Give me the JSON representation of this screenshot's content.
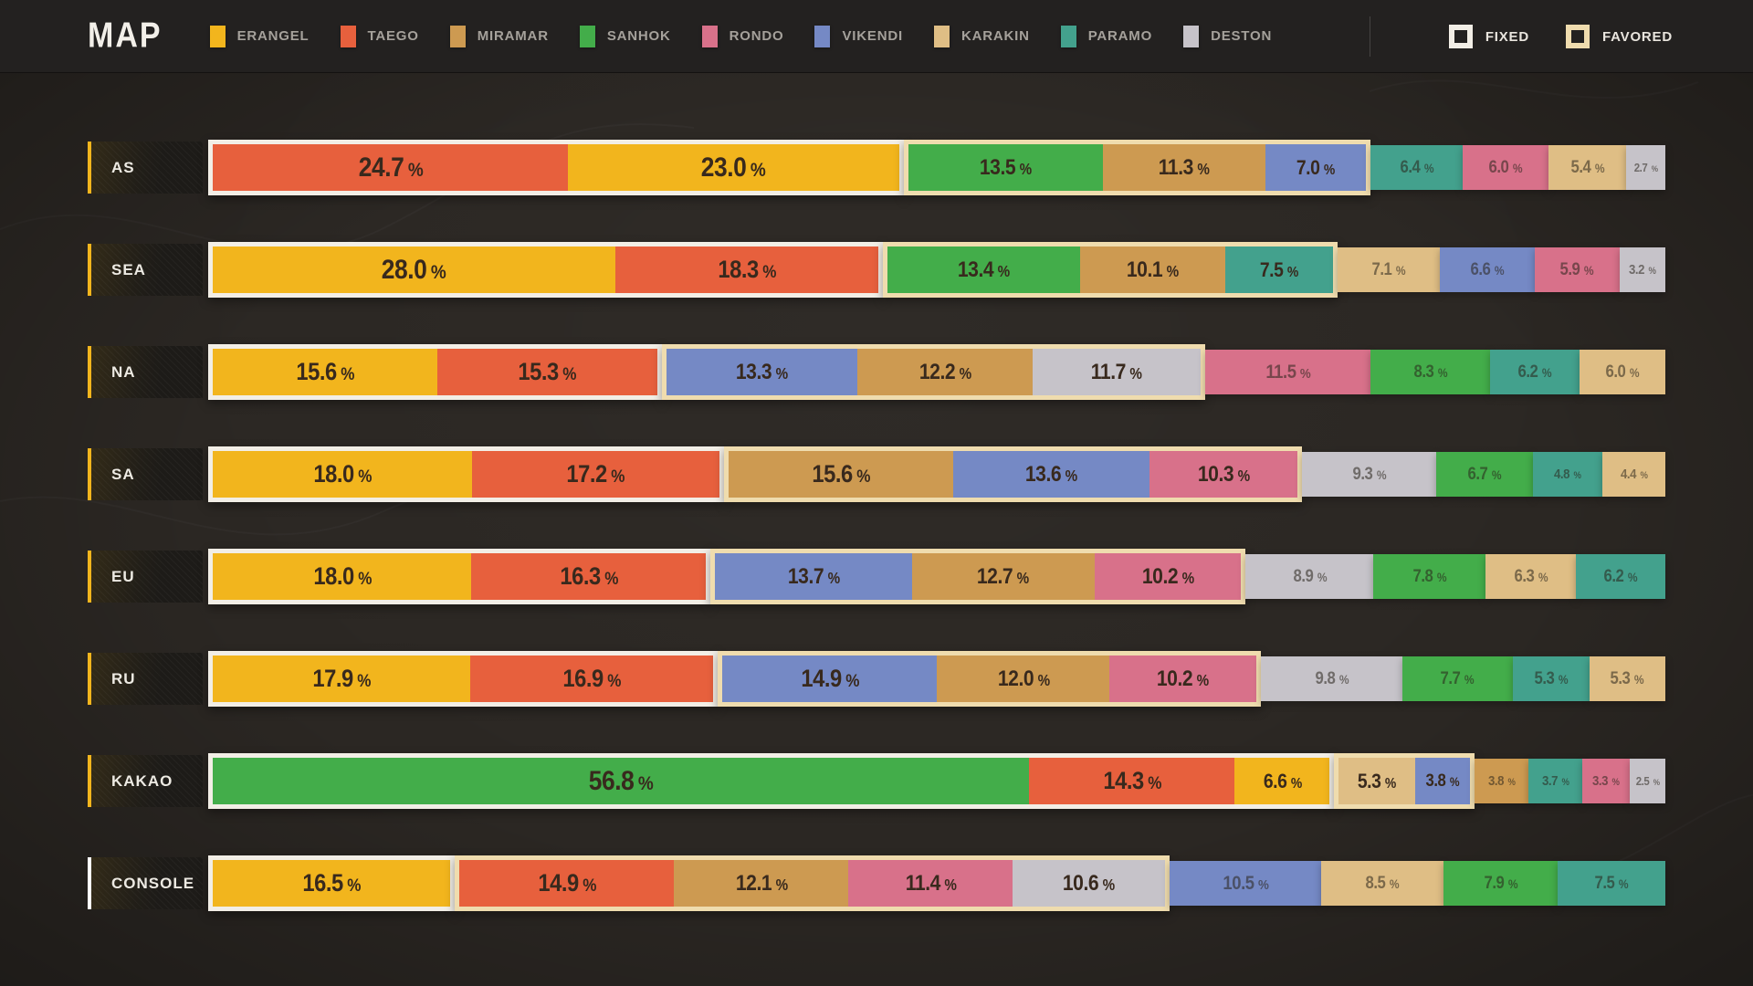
{
  "header": {
    "title": "MAP",
    "legend": [
      {
        "map": "ERANGEL",
        "color": "#F2B51D"
      },
      {
        "map": "TAEGO",
        "color": "#E7603D"
      },
      {
        "map": "MIRAMAR",
        "color": "#CD9A51"
      },
      {
        "map": "SANHOK",
        "color": "#43AD4A"
      },
      {
        "map": "RONDO",
        "color": "#D8718A"
      },
      {
        "map": "VIKENDI",
        "color": "#7589C5"
      },
      {
        "map": "KARAKIN",
        "color": "#DFBE85"
      },
      {
        "map": "PARAMO",
        "color": "#43A18D"
      },
      {
        "map": "DESTON",
        "color": "#C6C3C9"
      }
    ],
    "markers": [
      {
        "label": "FIXED",
        "border_color": "#F2EEE6"
      },
      {
        "label": "FAVORED",
        "border_color": "#EFDCAE"
      }
    ]
  },
  "chart_data": {
    "type": "bar",
    "variant": "horizontal-stacked",
    "unit": "%",
    "title": "MAP",
    "categories": [
      "AS",
      "SEA",
      "NA",
      "SA",
      "EU",
      "RU",
      "KAKAO",
      "CONSOLE"
    ],
    "maps": [
      "ERANGEL",
      "TAEGO",
      "MIRAMAR",
      "SANHOK",
      "RONDO",
      "VIKENDI",
      "KARAKIN",
      "PARAMO",
      "DESTON"
    ],
    "group_types": [
      "fixed",
      "favored",
      "none"
    ],
    "rows": [
      {
        "region": "AS",
        "accent": "#F2B51D",
        "groups": [
          {
            "type": "fixed",
            "segments": [
              {
                "map": "TAEGO",
                "value": 24.7
              },
              {
                "map": "ERANGEL",
                "value": 23.0
              }
            ]
          },
          {
            "type": "favored",
            "segments": [
              {
                "map": "SANHOK",
                "value": 13.5
              },
              {
                "map": "MIRAMAR",
                "value": 11.3
              },
              {
                "map": "VIKENDI",
                "value": 7.0
              }
            ]
          },
          {
            "type": "none",
            "segments": [
              {
                "map": "PARAMO",
                "value": 6.4
              },
              {
                "map": "RONDO",
                "value": 6.0
              },
              {
                "map": "KARAKIN",
                "value": 5.4
              },
              {
                "map": "DESTON",
                "value": 2.7
              }
            ]
          }
        ]
      },
      {
        "region": "SEA",
        "accent": "#F2B51D",
        "groups": [
          {
            "type": "fixed",
            "segments": [
              {
                "map": "ERANGEL",
                "value": 28.0
              },
              {
                "map": "TAEGO",
                "value": 18.3
              }
            ]
          },
          {
            "type": "favored",
            "segments": [
              {
                "map": "SANHOK",
                "value": 13.4
              },
              {
                "map": "MIRAMAR",
                "value": 10.1
              },
              {
                "map": "PARAMO",
                "value": 7.5
              }
            ]
          },
          {
            "type": "none",
            "segments": [
              {
                "map": "KARAKIN",
                "value": 7.1
              },
              {
                "map": "VIKENDI",
                "value": 6.6
              },
              {
                "map": "RONDO",
                "value": 5.9
              },
              {
                "map": "DESTON",
                "value": 3.2
              }
            ]
          }
        ]
      },
      {
        "region": "NA",
        "accent": "#F2B51D",
        "groups": [
          {
            "type": "fixed",
            "segments": [
              {
                "map": "ERANGEL",
                "value": 15.6
              },
              {
                "map": "TAEGO",
                "value": 15.3
              }
            ]
          },
          {
            "type": "favored",
            "segments": [
              {
                "map": "VIKENDI",
                "value": 13.3
              },
              {
                "map": "MIRAMAR",
                "value": 12.2
              },
              {
                "map": "DESTON",
                "value": 11.7
              }
            ]
          },
          {
            "type": "none",
            "segments": [
              {
                "map": "RONDO",
                "value": 11.5
              },
              {
                "map": "SANHOK",
                "value": 8.3
              },
              {
                "map": "PARAMO",
                "value": 6.2
              },
              {
                "map": "KARAKIN",
                "value": 6.0
              }
            ]
          }
        ]
      },
      {
        "region": "SA",
        "accent": "#F2B51D",
        "groups": [
          {
            "type": "fixed",
            "segments": [
              {
                "map": "ERANGEL",
                "value": 18.0
              },
              {
                "map": "TAEGO",
                "value": 17.2
              }
            ]
          },
          {
            "type": "favored",
            "segments": [
              {
                "map": "MIRAMAR",
                "value": 15.6
              },
              {
                "map": "VIKENDI",
                "value": 13.6
              },
              {
                "map": "RONDO",
                "value": 10.3
              }
            ]
          },
          {
            "type": "none",
            "segments": [
              {
                "map": "DESTON",
                "value": 9.3
              },
              {
                "map": "SANHOK",
                "value": 6.7
              },
              {
                "map": "PARAMO",
                "value": 4.8
              },
              {
                "map": "KARAKIN",
                "value": 4.4
              }
            ]
          }
        ]
      },
      {
        "region": "EU",
        "accent": "#F2B51D",
        "groups": [
          {
            "type": "fixed",
            "segments": [
              {
                "map": "ERANGEL",
                "value": 18.0
              },
              {
                "map": "TAEGO",
                "value": 16.3
              }
            ]
          },
          {
            "type": "favored",
            "segments": [
              {
                "map": "VIKENDI",
                "value": 13.7
              },
              {
                "map": "MIRAMAR",
                "value": 12.7
              },
              {
                "map": "RONDO",
                "value": 10.2
              }
            ]
          },
          {
            "type": "none",
            "segments": [
              {
                "map": "DESTON",
                "value": 8.9
              },
              {
                "map": "SANHOK",
                "value": 7.8
              },
              {
                "map": "KARAKIN",
                "value": 6.3
              },
              {
                "map": "PARAMO",
                "value": 6.2
              }
            ]
          }
        ]
      },
      {
        "region": "RU",
        "accent": "#F2B51D",
        "groups": [
          {
            "type": "fixed",
            "segments": [
              {
                "map": "ERANGEL",
                "value": 17.9
              },
              {
                "map": "TAEGO",
                "value": 16.9
              }
            ]
          },
          {
            "type": "favored",
            "segments": [
              {
                "map": "VIKENDI",
                "value": 14.9
              },
              {
                "map": "MIRAMAR",
                "value": 12.0
              },
              {
                "map": "RONDO",
                "value": 10.2
              }
            ]
          },
          {
            "type": "none",
            "segments": [
              {
                "map": "DESTON",
                "value": 9.8
              },
              {
                "map": "SANHOK",
                "value": 7.7
              },
              {
                "map": "PARAMO",
                "value": 5.3
              },
              {
                "map": "KARAKIN",
                "value": 5.3
              }
            ]
          }
        ]
      },
      {
        "region": "KAKAO",
        "accent": "#F2B51D",
        "groups": [
          {
            "type": "fixed",
            "segments": [
              {
                "map": "SANHOK",
                "value": 56.8
              },
              {
                "map": "TAEGO",
                "value": 14.3
              },
              {
                "map": "ERANGEL",
                "value": 6.6
              }
            ]
          },
          {
            "type": "favored",
            "segments": [
              {
                "map": "KARAKIN",
                "value": 5.3
              },
              {
                "map": "VIKENDI",
                "value": 3.8
              }
            ]
          },
          {
            "type": "none",
            "segments": [
              {
                "map": "MIRAMAR",
                "value": 3.8
              },
              {
                "map": "PARAMO",
                "value": 3.7
              },
              {
                "map": "RONDO",
                "value": 3.3
              },
              {
                "map": "DESTON",
                "value": 2.5
              }
            ]
          }
        ]
      },
      {
        "region": "CONSOLE",
        "accent": "#FFFFFF",
        "groups": [
          {
            "type": "fixed",
            "segments": [
              {
                "map": "ERANGEL",
                "value": 16.5
              }
            ]
          },
          {
            "type": "favored",
            "segments": [
              {
                "map": "TAEGO",
                "value": 14.9
              },
              {
                "map": "MIRAMAR",
                "value": 12.1
              },
              {
                "map": "RONDO",
                "value": 11.4
              },
              {
                "map": "DESTON",
                "value": 10.6
              }
            ]
          },
          {
            "type": "none",
            "segments": [
              {
                "map": "VIKENDI",
                "value": 10.5
              },
              {
                "map": "KARAKIN",
                "value": 8.5
              },
              {
                "map": "SANHOK",
                "value": 7.9
              },
              {
                "map": "PARAMO",
                "value": 7.5
              }
            ]
          }
        ]
      }
    ]
  }
}
